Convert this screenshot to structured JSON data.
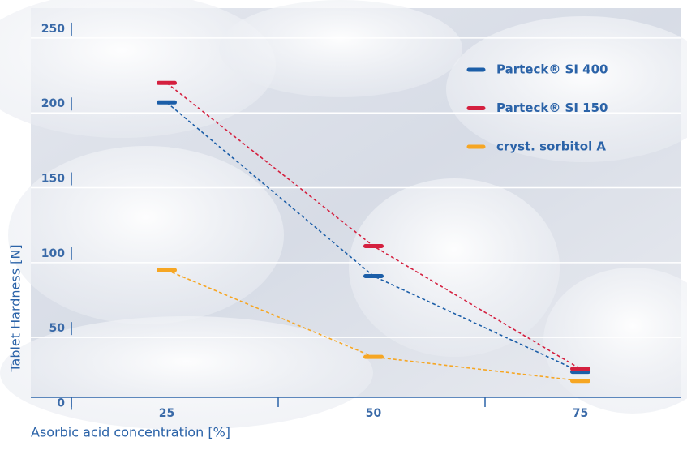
{
  "chart_data": {
    "type": "line",
    "y_label": "Tablet Hardness [N]",
    "x_label": "Asorbic acid concentration [%]",
    "categories": [
      "25",
      "50",
      "75"
    ],
    "series": [
      {
        "name": "Parteck® SI 400",
        "color": "#1c5ea8",
        "values": [
          207,
          91,
          27
        ]
      },
      {
        "name": "Parteck® SI 150",
        "color": "#d4203f",
        "values": [
          220,
          111,
          29
        ]
      },
      {
        "name": "cryst. sorbitol A",
        "color": "#f6a623",
        "values": [
          95,
          37,
          21
        ]
      }
    ],
    "ylim": [
      10,
      270
    ],
    "yticks": [
      0,
      50,
      100,
      150,
      200,
      250
    ],
    "grid": true
  }
}
